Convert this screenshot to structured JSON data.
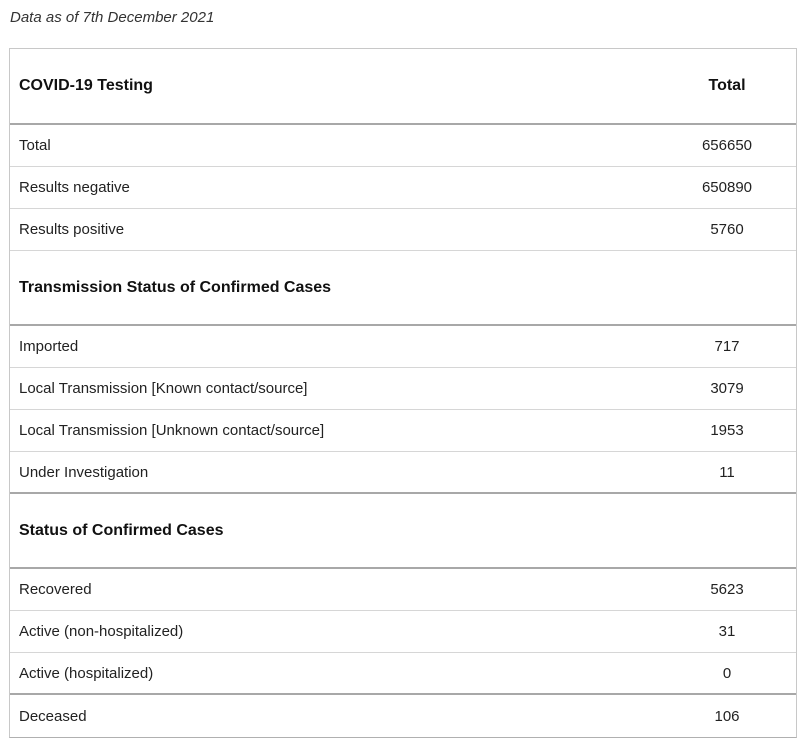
{
  "as_of": "Data as of 7th December 2021",
  "table": {
    "header": {
      "label": "COVID-19 Testing",
      "value": "Total"
    },
    "testing_rows": [
      {
        "label": "Total",
        "value": "656650"
      },
      {
        "label": "Results negative",
        "value": "650890"
      },
      {
        "label": "Results positive",
        "value": "5760"
      }
    ],
    "transmission_header": {
      "label": "Transmission Status of Confirmed Cases",
      "value": ""
    },
    "transmission_rows": [
      {
        "label": "Imported",
        "value": "717"
      },
      {
        "label": "Local Transmission [Known contact/source]",
        "value": "3079"
      },
      {
        "label": "Local Transmission [Unknown contact/source]",
        "value": "1953"
      },
      {
        "label": "Under Investigation",
        "value": "11"
      }
    ],
    "status_header": {
      "label": "Status of Confirmed Cases",
      "value": ""
    },
    "status_rows": [
      {
        "label": "Recovered",
        "value": "5623"
      },
      {
        "label": "Active (non-hospitalized)",
        "value": "31"
      },
      {
        "label": "Active (hospitalized)",
        "value": "0"
      },
      {
        "label": "Deceased",
        "value": "106"
      }
    ]
  }
}
